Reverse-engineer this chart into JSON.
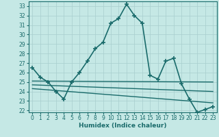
{
  "xlabel": "Humidex (Indice chaleur)",
  "ylabel": "",
  "background_color": "#c5e8e5",
  "grid_color": "#a8cece",
  "line_color": "#1a6b6b",
  "xlim": [
    -0.5,
    23.5
  ],
  "ylim": [
    21.8,
    33.5
  ],
  "yticks": [
    22,
    23,
    24,
    25,
    26,
    27,
    28,
    29,
    30,
    31,
    32,
    33
  ],
  "xticks": [
    0,
    1,
    2,
    3,
    4,
    5,
    6,
    7,
    8,
    9,
    10,
    11,
    12,
    13,
    14,
    15,
    16,
    17,
    18,
    19,
    20,
    21,
    22,
    23
  ],
  "series": [
    {
      "x": [
        0,
        1,
        2,
        3,
        4,
        5,
        6,
        7,
        8,
        9,
        10,
        11,
        12,
        13,
        14,
        15,
        16,
        17,
        18,
        19,
        20,
        21,
        22,
        23
      ],
      "y": [
        26.5,
        25.5,
        25.0,
        24.0,
        23.2,
        25.0,
        26.0,
        27.2,
        28.5,
        29.2,
        31.2,
        31.7,
        33.2,
        32.0,
        31.2,
        25.7,
        25.3,
        27.2,
        27.5,
        24.8,
        23.2,
        21.8,
        22.1,
        22.4
      ],
      "marker": "+",
      "markersize": 5,
      "linewidth": 1.2
    },
    {
      "x": [
        0,
        23
      ],
      "y": [
        25.1,
        25.0
      ],
      "marker": null,
      "linewidth": 1.0
    },
    {
      "x": [
        0,
        23
      ],
      "y": [
        24.7,
        24.0
      ],
      "marker": null,
      "linewidth": 1.0
    },
    {
      "x": [
        0,
        23
      ],
      "y": [
        24.3,
        22.8
      ],
      "marker": null,
      "linewidth": 1.0
    }
  ]
}
